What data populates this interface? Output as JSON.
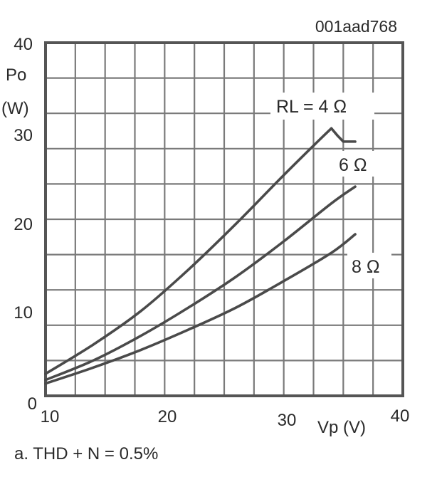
{
  "chart_data": {
    "type": "line",
    "id_code": "001aad768",
    "ylabel": "Po",
    "ylabel_unit": "(W)",
    "xlabel": "Vp (V)",
    "caption": "a. THD + N = 0.5%",
    "xlim": [
      10,
      40
    ],
    "ylim": [
      0,
      40
    ],
    "x_ticks": [
      "10",
      "20",
      "30",
      "40"
    ],
    "y_ticks": [
      "0",
      "10",
      "20",
      "30",
      "40"
    ],
    "grid": true,
    "series": [
      {
        "name": "RL = 4 Ω",
        "x": [
          10,
          14,
          18,
          22,
          26,
          30,
          33,
          34,
          34.5,
          35,
          36
        ],
        "y": [
          2.5,
          5.8,
          9.6,
          14.3,
          19.5,
          25.0,
          29.0,
          30.3,
          29.5,
          28.8,
          28.8
        ]
      },
      {
        "name": "6 Ω",
        "x": [
          10,
          14,
          18,
          22,
          26,
          30,
          34,
          36
        ],
        "y": [
          1.8,
          4.0,
          6.8,
          10.0,
          13.5,
          17.5,
          21.8,
          23.7
        ]
      },
      {
        "name": "8 Ω",
        "x": [
          10,
          14,
          18,
          22,
          26,
          30,
          34,
          36
        ],
        "y": [
          1.4,
          3.2,
          5.2,
          7.5,
          10.0,
          13.0,
          16.2,
          18.3
        ]
      }
    ]
  }
}
